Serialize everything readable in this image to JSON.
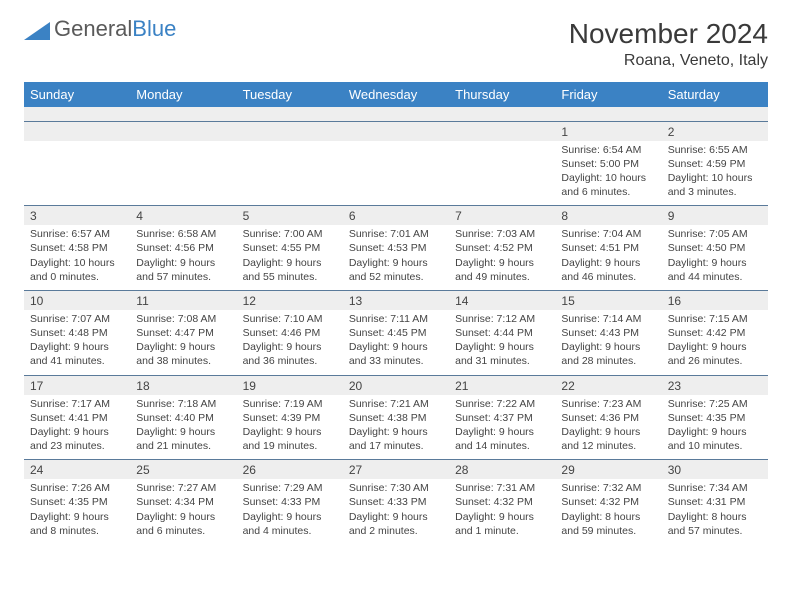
{
  "brand": {
    "name1": "General",
    "name2": "Blue"
  },
  "title": "November 2024",
  "location": "Roana, Veneto, Italy",
  "colors": {
    "header_bg": "#3b82c4",
    "header_text": "#ffffff",
    "daynum_bg": "#eeeeee",
    "border": "#5a7a9a",
    "text": "#444444",
    "page_bg": "#ffffff"
  },
  "typography": {
    "title_fontsize": 28,
    "location_fontsize": 16,
    "header_fontsize": 13,
    "cell_fontsize": 10.5
  },
  "day_headers": [
    "Sunday",
    "Monday",
    "Tuesday",
    "Wednesday",
    "Thursday",
    "Friday",
    "Saturday"
  ],
  "weeks": [
    [
      null,
      null,
      null,
      null,
      null,
      {
        "n": "1",
        "sr": "Sunrise: 6:54 AM",
        "ss": "Sunset: 5:00 PM",
        "d1": "Daylight: 10 hours",
        "d2": "and 6 minutes."
      },
      {
        "n": "2",
        "sr": "Sunrise: 6:55 AM",
        "ss": "Sunset: 4:59 PM",
        "d1": "Daylight: 10 hours",
        "d2": "and 3 minutes."
      }
    ],
    [
      {
        "n": "3",
        "sr": "Sunrise: 6:57 AM",
        "ss": "Sunset: 4:58 PM",
        "d1": "Daylight: 10 hours",
        "d2": "and 0 minutes."
      },
      {
        "n": "4",
        "sr": "Sunrise: 6:58 AM",
        "ss": "Sunset: 4:56 PM",
        "d1": "Daylight: 9 hours",
        "d2": "and 57 minutes."
      },
      {
        "n": "5",
        "sr": "Sunrise: 7:00 AM",
        "ss": "Sunset: 4:55 PM",
        "d1": "Daylight: 9 hours",
        "d2": "and 55 minutes."
      },
      {
        "n": "6",
        "sr": "Sunrise: 7:01 AM",
        "ss": "Sunset: 4:53 PM",
        "d1": "Daylight: 9 hours",
        "d2": "and 52 minutes."
      },
      {
        "n": "7",
        "sr": "Sunrise: 7:03 AM",
        "ss": "Sunset: 4:52 PM",
        "d1": "Daylight: 9 hours",
        "d2": "and 49 minutes."
      },
      {
        "n": "8",
        "sr": "Sunrise: 7:04 AM",
        "ss": "Sunset: 4:51 PM",
        "d1": "Daylight: 9 hours",
        "d2": "and 46 minutes."
      },
      {
        "n": "9",
        "sr": "Sunrise: 7:05 AM",
        "ss": "Sunset: 4:50 PM",
        "d1": "Daylight: 9 hours",
        "d2": "and 44 minutes."
      }
    ],
    [
      {
        "n": "10",
        "sr": "Sunrise: 7:07 AM",
        "ss": "Sunset: 4:48 PM",
        "d1": "Daylight: 9 hours",
        "d2": "and 41 minutes."
      },
      {
        "n": "11",
        "sr": "Sunrise: 7:08 AM",
        "ss": "Sunset: 4:47 PM",
        "d1": "Daylight: 9 hours",
        "d2": "and 38 minutes."
      },
      {
        "n": "12",
        "sr": "Sunrise: 7:10 AM",
        "ss": "Sunset: 4:46 PM",
        "d1": "Daylight: 9 hours",
        "d2": "and 36 minutes."
      },
      {
        "n": "13",
        "sr": "Sunrise: 7:11 AM",
        "ss": "Sunset: 4:45 PM",
        "d1": "Daylight: 9 hours",
        "d2": "and 33 minutes."
      },
      {
        "n": "14",
        "sr": "Sunrise: 7:12 AM",
        "ss": "Sunset: 4:44 PM",
        "d1": "Daylight: 9 hours",
        "d2": "and 31 minutes."
      },
      {
        "n": "15",
        "sr": "Sunrise: 7:14 AM",
        "ss": "Sunset: 4:43 PM",
        "d1": "Daylight: 9 hours",
        "d2": "and 28 minutes."
      },
      {
        "n": "16",
        "sr": "Sunrise: 7:15 AM",
        "ss": "Sunset: 4:42 PM",
        "d1": "Daylight: 9 hours",
        "d2": "and 26 minutes."
      }
    ],
    [
      {
        "n": "17",
        "sr": "Sunrise: 7:17 AM",
        "ss": "Sunset: 4:41 PM",
        "d1": "Daylight: 9 hours",
        "d2": "and 23 minutes."
      },
      {
        "n": "18",
        "sr": "Sunrise: 7:18 AM",
        "ss": "Sunset: 4:40 PM",
        "d1": "Daylight: 9 hours",
        "d2": "and 21 minutes."
      },
      {
        "n": "19",
        "sr": "Sunrise: 7:19 AM",
        "ss": "Sunset: 4:39 PM",
        "d1": "Daylight: 9 hours",
        "d2": "and 19 minutes."
      },
      {
        "n": "20",
        "sr": "Sunrise: 7:21 AM",
        "ss": "Sunset: 4:38 PM",
        "d1": "Daylight: 9 hours",
        "d2": "and 17 minutes."
      },
      {
        "n": "21",
        "sr": "Sunrise: 7:22 AM",
        "ss": "Sunset: 4:37 PM",
        "d1": "Daylight: 9 hours",
        "d2": "and 14 minutes."
      },
      {
        "n": "22",
        "sr": "Sunrise: 7:23 AM",
        "ss": "Sunset: 4:36 PM",
        "d1": "Daylight: 9 hours",
        "d2": "and 12 minutes."
      },
      {
        "n": "23",
        "sr": "Sunrise: 7:25 AM",
        "ss": "Sunset: 4:35 PM",
        "d1": "Daylight: 9 hours",
        "d2": "and 10 minutes."
      }
    ],
    [
      {
        "n": "24",
        "sr": "Sunrise: 7:26 AM",
        "ss": "Sunset: 4:35 PM",
        "d1": "Daylight: 9 hours",
        "d2": "and 8 minutes."
      },
      {
        "n": "25",
        "sr": "Sunrise: 7:27 AM",
        "ss": "Sunset: 4:34 PM",
        "d1": "Daylight: 9 hours",
        "d2": "and 6 minutes."
      },
      {
        "n": "26",
        "sr": "Sunrise: 7:29 AM",
        "ss": "Sunset: 4:33 PM",
        "d1": "Daylight: 9 hours",
        "d2": "and 4 minutes."
      },
      {
        "n": "27",
        "sr": "Sunrise: 7:30 AM",
        "ss": "Sunset: 4:33 PM",
        "d1": "Daylight: 9 hours",
        "d2": "and 2 minutes."
      },
      {
        "n": "28",
        "sr": "Sunrise: 7:31 AM",
        "ss": "Sunset: 4:32 PM",
        "d1": "Daylight: 9 hours",
        "d2": "and 1 minute."
      },
      {
        "n": "29",
        "sr": "Sunrise: 7:32 AM",
        "ss": "Sunset: 4:32 PM",
        "d1": "Daylight: 8 hours",
        "d2": "and 59 minutes."
      },
      {
        "n": "30",
        "sr": "Sunrise: 7:34 AM",
        "ss": "Sunset: 4:31 PM",
        "d1": "Daylight: 8 hours",
        "d2": "and 57 minutes."
      }
    ]
  ]
}
